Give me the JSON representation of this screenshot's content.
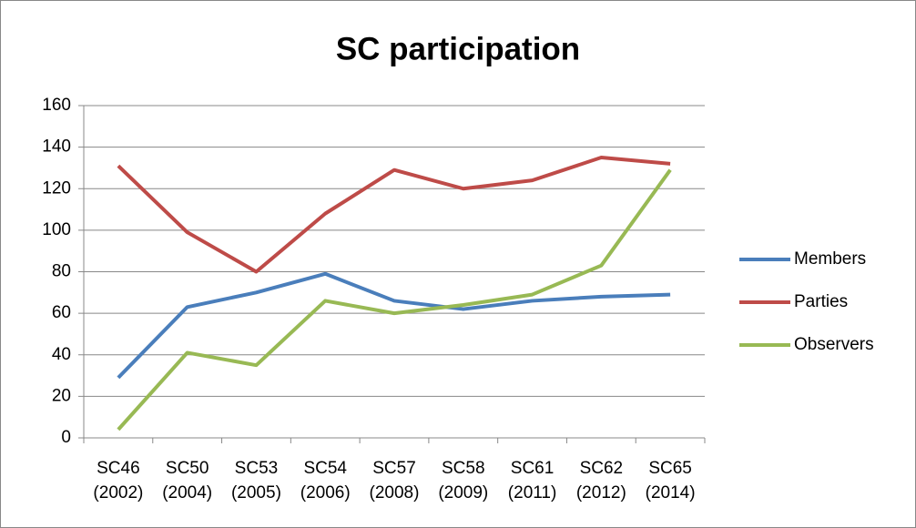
{
  "chart_data": {
    "type": "line",
    "title": "SC participation",
    "categories": [
      [
        "SC46",
        "(2002)"
      ],
      [
        "SC50",
        "(2004)"
      ],
      [
        "SC53",
        "(2005)"
      ],
      [
        "SC54",
        "(2006)"
      ],
      [
        "SC57",
        "(2008)"
      ],
      [
        "SC58",
        "(2009)"
      ],
      [
        "SC61",
        "(2011)"
      ],
      [
        "SC62",
        "(2012)"
      ],
      [
        "SC65",
        "(2014)"
      ]
    ],
    "series": [
      {
        "name": "Members",
        "color": "#4a7ebb",
        "values": [
          29,
          63,
          70,
          79,
          66,
          62,
          66,
          68,
          69
        ]
      },
      {
        "name": "Parties",
        "color": "#be4b48",
        "values": [
          131,
          99,
          80,
          108,
          129,
          120,
          124,
          135,
          132
        ]
      },
      {
        "name": "Observers",
        "color": "#98b954",
        "values": [
          4,
          41,
          35,
          66,
          60,
          64,
          69,
          83,
          129
        ]
      }
    ],
    "ylim": [
      0,
      160
    ],
    "yticks": [
      0,
      20,
      40,
      60,
      80,
      100,
      120,
      140,
      160
    ],
    "grid": true,
    "legend": "right"
  }
}
